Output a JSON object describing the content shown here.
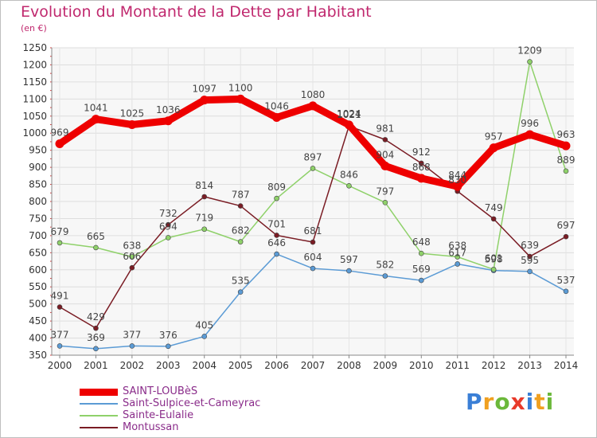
{
  "chart_data": {
    "type": "line",
    "title": "Evolution du Montant de la Dette par Habitant",
    "subtitle": "(en €)",
    "x": [
      "2000",
      "2001",
      "2002",
      "2003",
      "2004",
      "2005",
      "2006",
      "2007",
      "2008",
      "2009",
      "2010",
      "2011",
      "2012",
      "2013",
      "2014"
    ],
    "yticks": [
      350,
      400,
      450,
      500,
      550,
      600,
      650,
      700,
      750,
      800,
      850,
      900,
      950,
      1000,
      1050,
      1100,
      1150,
      1200,
      1250
    ],
    "ylim": [
      350,
      1250
    ],
    "grid": true,
    "legend_position": "bottom-left",
    "series": [
      {
        "name": "SAINT-LOUBèS",
        "color": "#ee0000",
        "values": [
          969,
          1041,
          1025,
          1036,
          1097,
          1100,
          1046,
          1080,
          1024,
          904,
          868,
          844,
          957,
          996,
          963
        ]
      },
      {
        "name": "Saint-Sulpice-et-Cameyrac",
        "color": "#5b9bd5",
        "values": [
          377,
          369,
          377,
          376,
          405,
          535,
          646,
          604,
          597,
          582,
          569,
          617,
          598,
          595,
          537
        ]
      },
      {
        "name": "Sainte-Eulalie",
        "color": "#8fd16a",
        "values": [
          679,
          665,
          638,
          694,
          719,
          682,
          809,
          897,
          846,
          797,
          648,
          638,
          601,
          1209,
          889
        ]
      },
      {
        "name": "Montussan",
        "color": "#7a1c24",
        "values": [
          491,
          429,
          606,
          732,
          814,
          787,
          701,
          681,
          1021,
          981,
          912,
          830,
          749,
          639,
          697
        ]
      }
    ],
    "point_labels": [
      [
        "969",
        "1041",
        "1025",
        "1036",
        "1097",
        "1100",
        "1046",
        "1080",
        "1024",
        "904",
        "868",
        "844",
        "957",
        "996",
        "963"
      ],
      [
        "377",
        "369",
        "377",
        "376",
        "405",
        "535",
        "646",
        "604",
        "597",
        "582",
        "569",
        "617",
        "598",
        "595",
        "537"
      ],
      [
        "679",
        "665",
        "638",
        "694",
        "719",
        "682",
        "809",
        "897",
        "846",
        "797",
        "648",
        "638",
        "601",
        "1209",
        "889"
      ],
      [
        "491",
        "429",
        "606",
        "732",
        "814",
        "787",
        "701",
        "681",
        "1021",
        "981",
        "912",
        "830",
        "749",
        "639",
        "697"
      ]
    ]
  },
  "logo": {
    "letters": [
      "P",
      "r",
      "o",
      "x",
      "i",
      "t",
      "i"
    ],
    "colors": [
      "#3a7fd6",
      "#f0a020",
      "#6bb83a",
      "#e83a2a",
      "#3a7fd6",
      "#f0a020",
      "#6bb83a"
    ]
  }
}
